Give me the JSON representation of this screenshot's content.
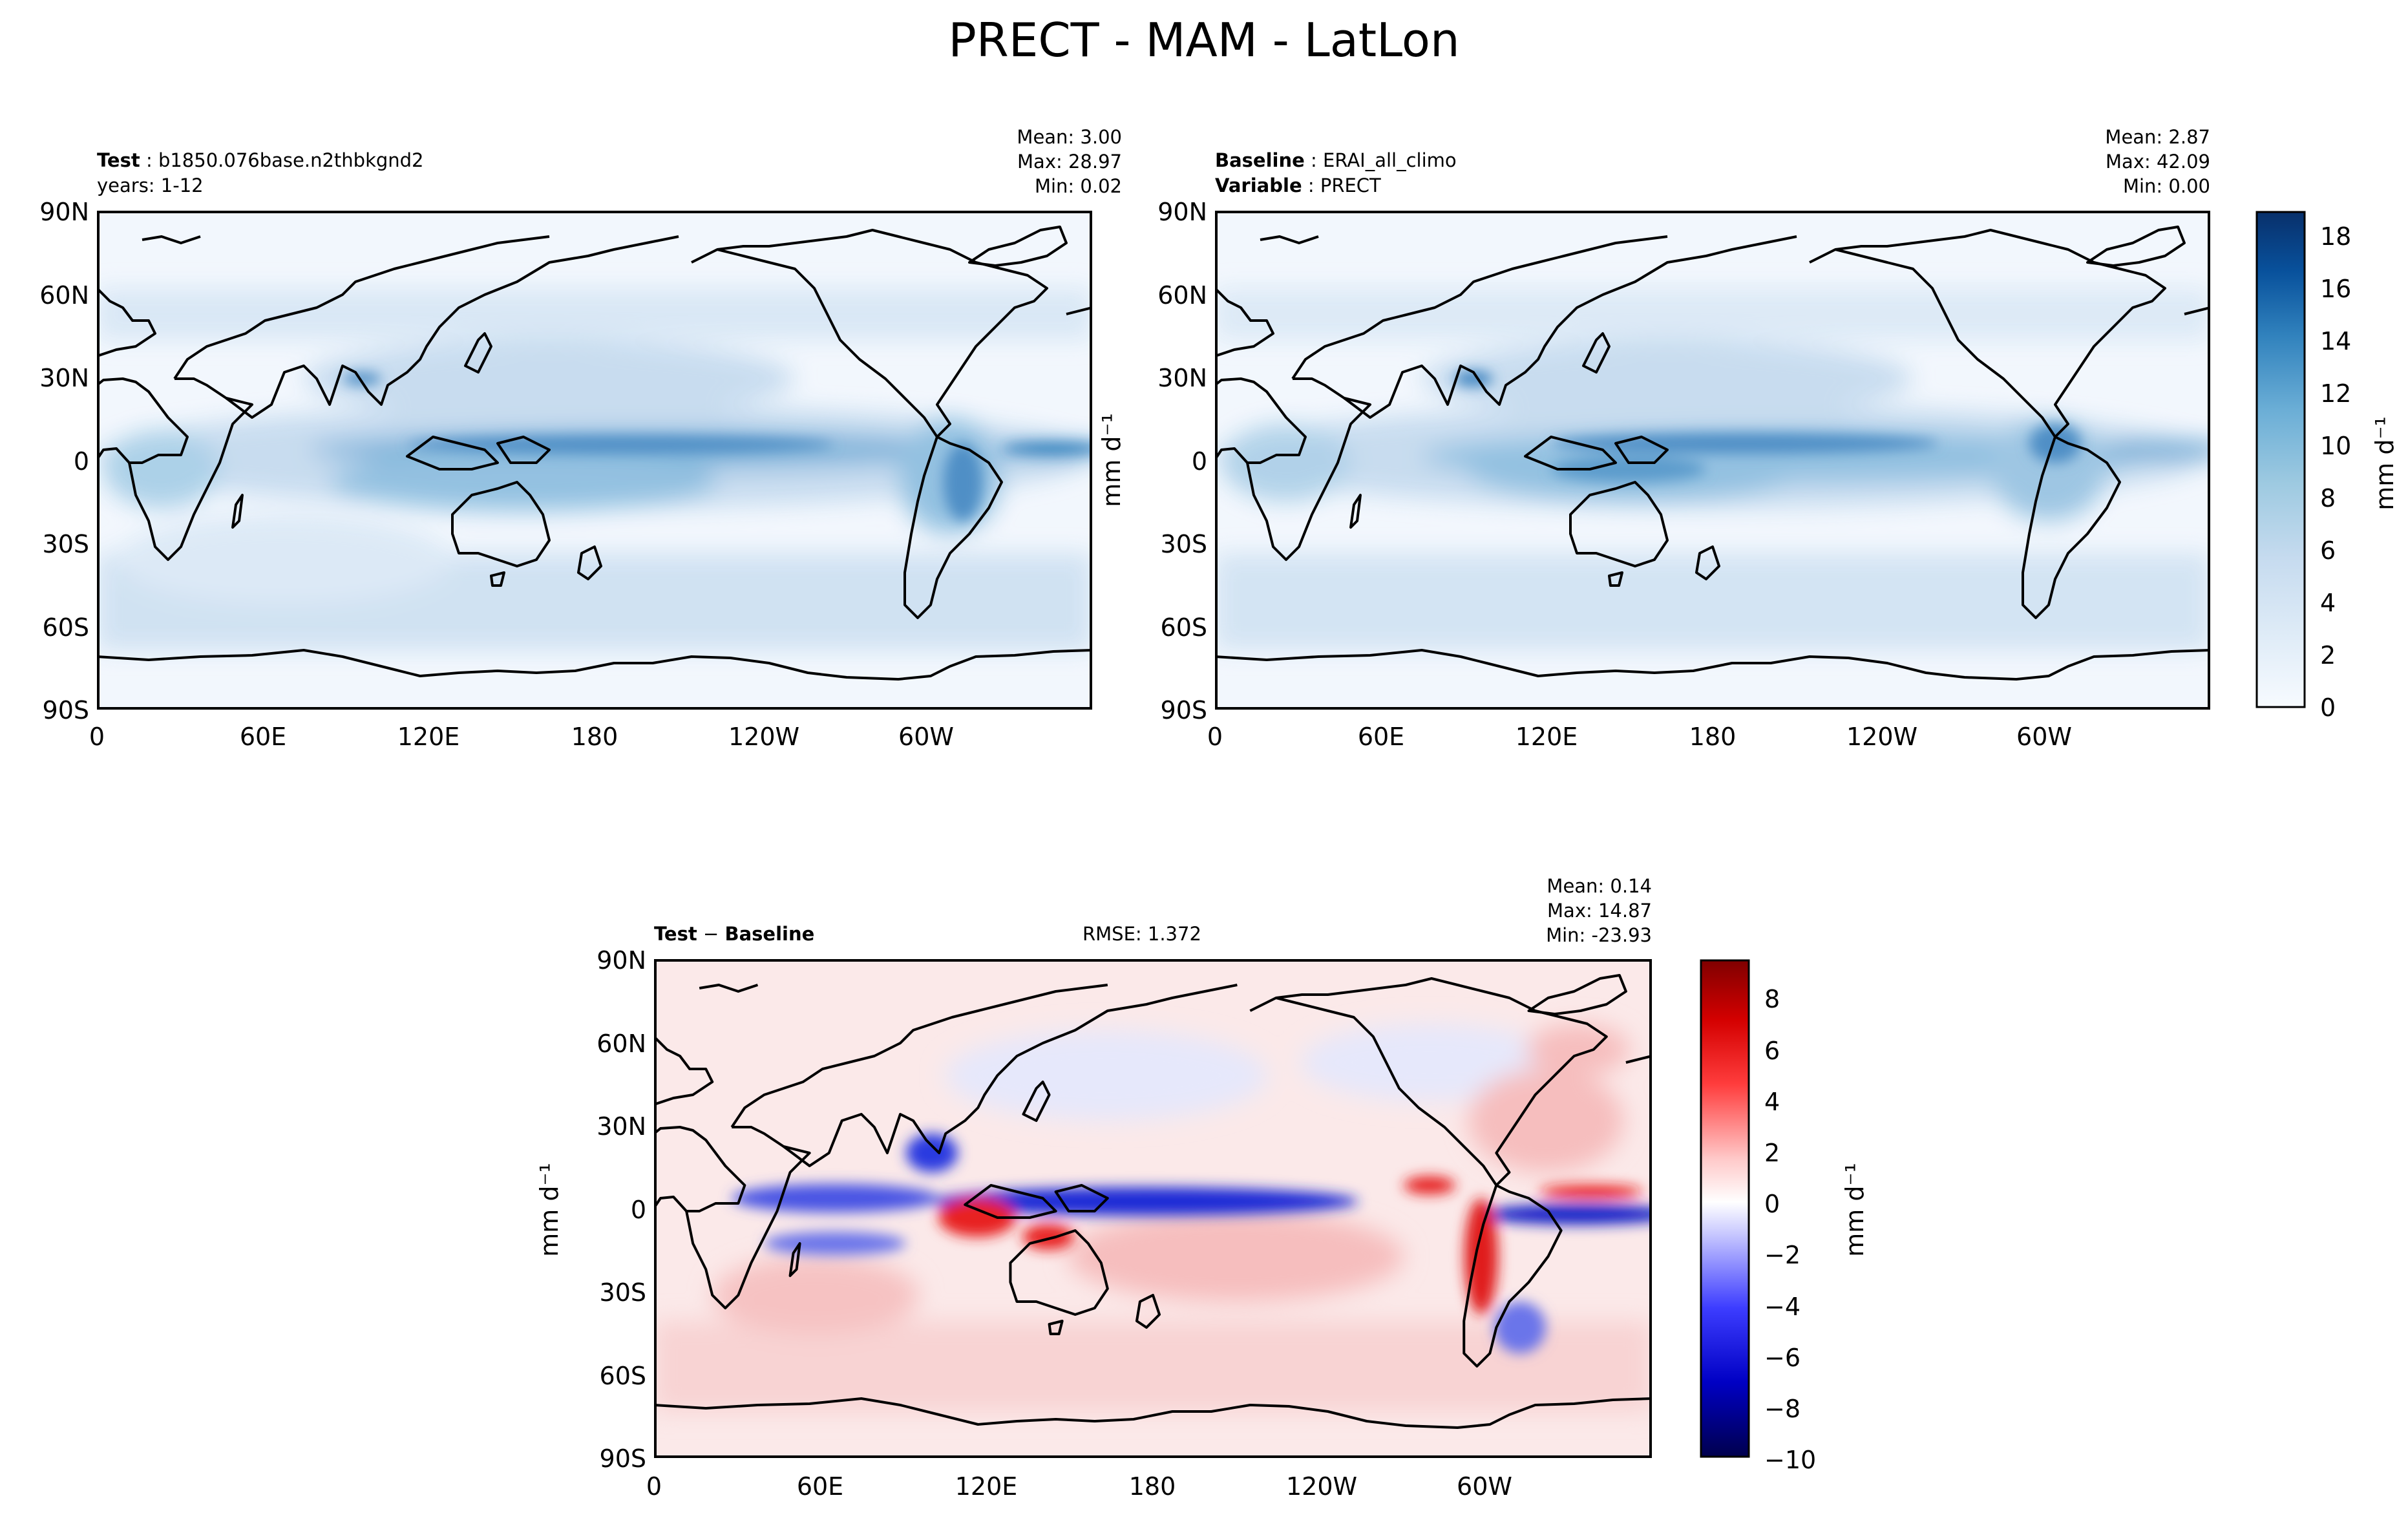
{
  "page": {
    "title": "PRECT - MAM - LatLon"
  },
  "axes": {
    "lat_ticks": [
      "90N",
      "60N",
      "30N",
      "0",
      "30S",
      "60S",
      "90S"
    ],
    "lon_ticks": [
      "0",
      "60E",
      "120E",
      "180",
      "120W",
      "60W"
    ]
  },
  "panels": {
    "test": {
      "label_key": "Test",
      "label_value": "b1850.076base.n2thbkgnd2",
      "line2": "years: 1-12",
      "mean": "Mean:  3.00",
      "max": "Max: 28.97",
      "min": "Min:  0.02",
      "ylabel": "mm d⁻¹"
    },
    "baseline": {
      "label_key": "Baseline",
      "label_value": "ERAI_all_climo",
      "var_key": "Variable",
      "var_value": "PRECT",
      "mean": "Mean:  2.87",
      "max": "Max: 42.09",
      "min": "Min:  0.00"
    },
    "diff": {
      "label_key": "Test",
      "label_op": "−",
      "label_key2": "Baseline",
      "rmse": "RMSE: 1.372",
      "mean": "Mean:  0.14",
      "max": "Max: 14.87",
      "min": "Min: -23.93",
      "ylabel": "mm d⁻¹"
    }
  },
  "colorbars": {
    "precip": {
      "label": "mm d⁻¹",
      "ticks": [
        "18",
        "16",
        "14",
        "12",
        "10",
        "8",
        "6",
        "4",
        "2",
        "0"
      ],
      "range": [
        0,
        19
      ],
      "colormap": "Blues"
    },
    "diff": {
      "label": "mm d⁻¹",
      "ticks": [
        "8",
        "6",
        "4",
        "2",
        "0",
        "−2",
        "−4",
        "−6",
        "−8",
        "−10"
      ],
      "range": [
        -10,
        9.5
      ],
      "colormap": "seismic"
    }
  },
  "colors": {
    "ocean_light": "#f2f7fd",
    "precip_mid": "#9ac4e2",
    "precip_high": "#2b7bba",
    "diff_pos": "#ee1111",
    "diff_neg": "#1122dd",
    "coast": "#000000"
  }
}
